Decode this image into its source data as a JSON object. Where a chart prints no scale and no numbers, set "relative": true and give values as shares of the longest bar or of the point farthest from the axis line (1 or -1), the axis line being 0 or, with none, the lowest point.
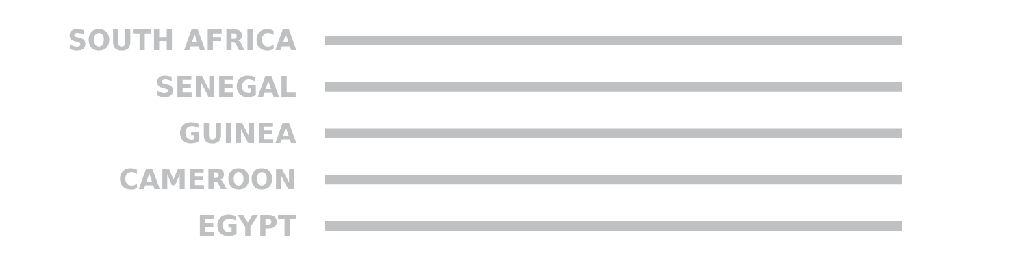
{
  "chart_data": {
    "type": "bar",
    "orientation": "horizontal",
    "relative": true,
    "tick_labels": "y",
    "categories": [
      "SOUTH AFRICA",
      "SENEGAL",
      "GUINEA",
      "CAMEROON",
      "EGYPT"
    ],
    "values": [
      1,
      1,
      1,
      1,
      1
    ],
    "color": "#bfc0c2"
  }
}
